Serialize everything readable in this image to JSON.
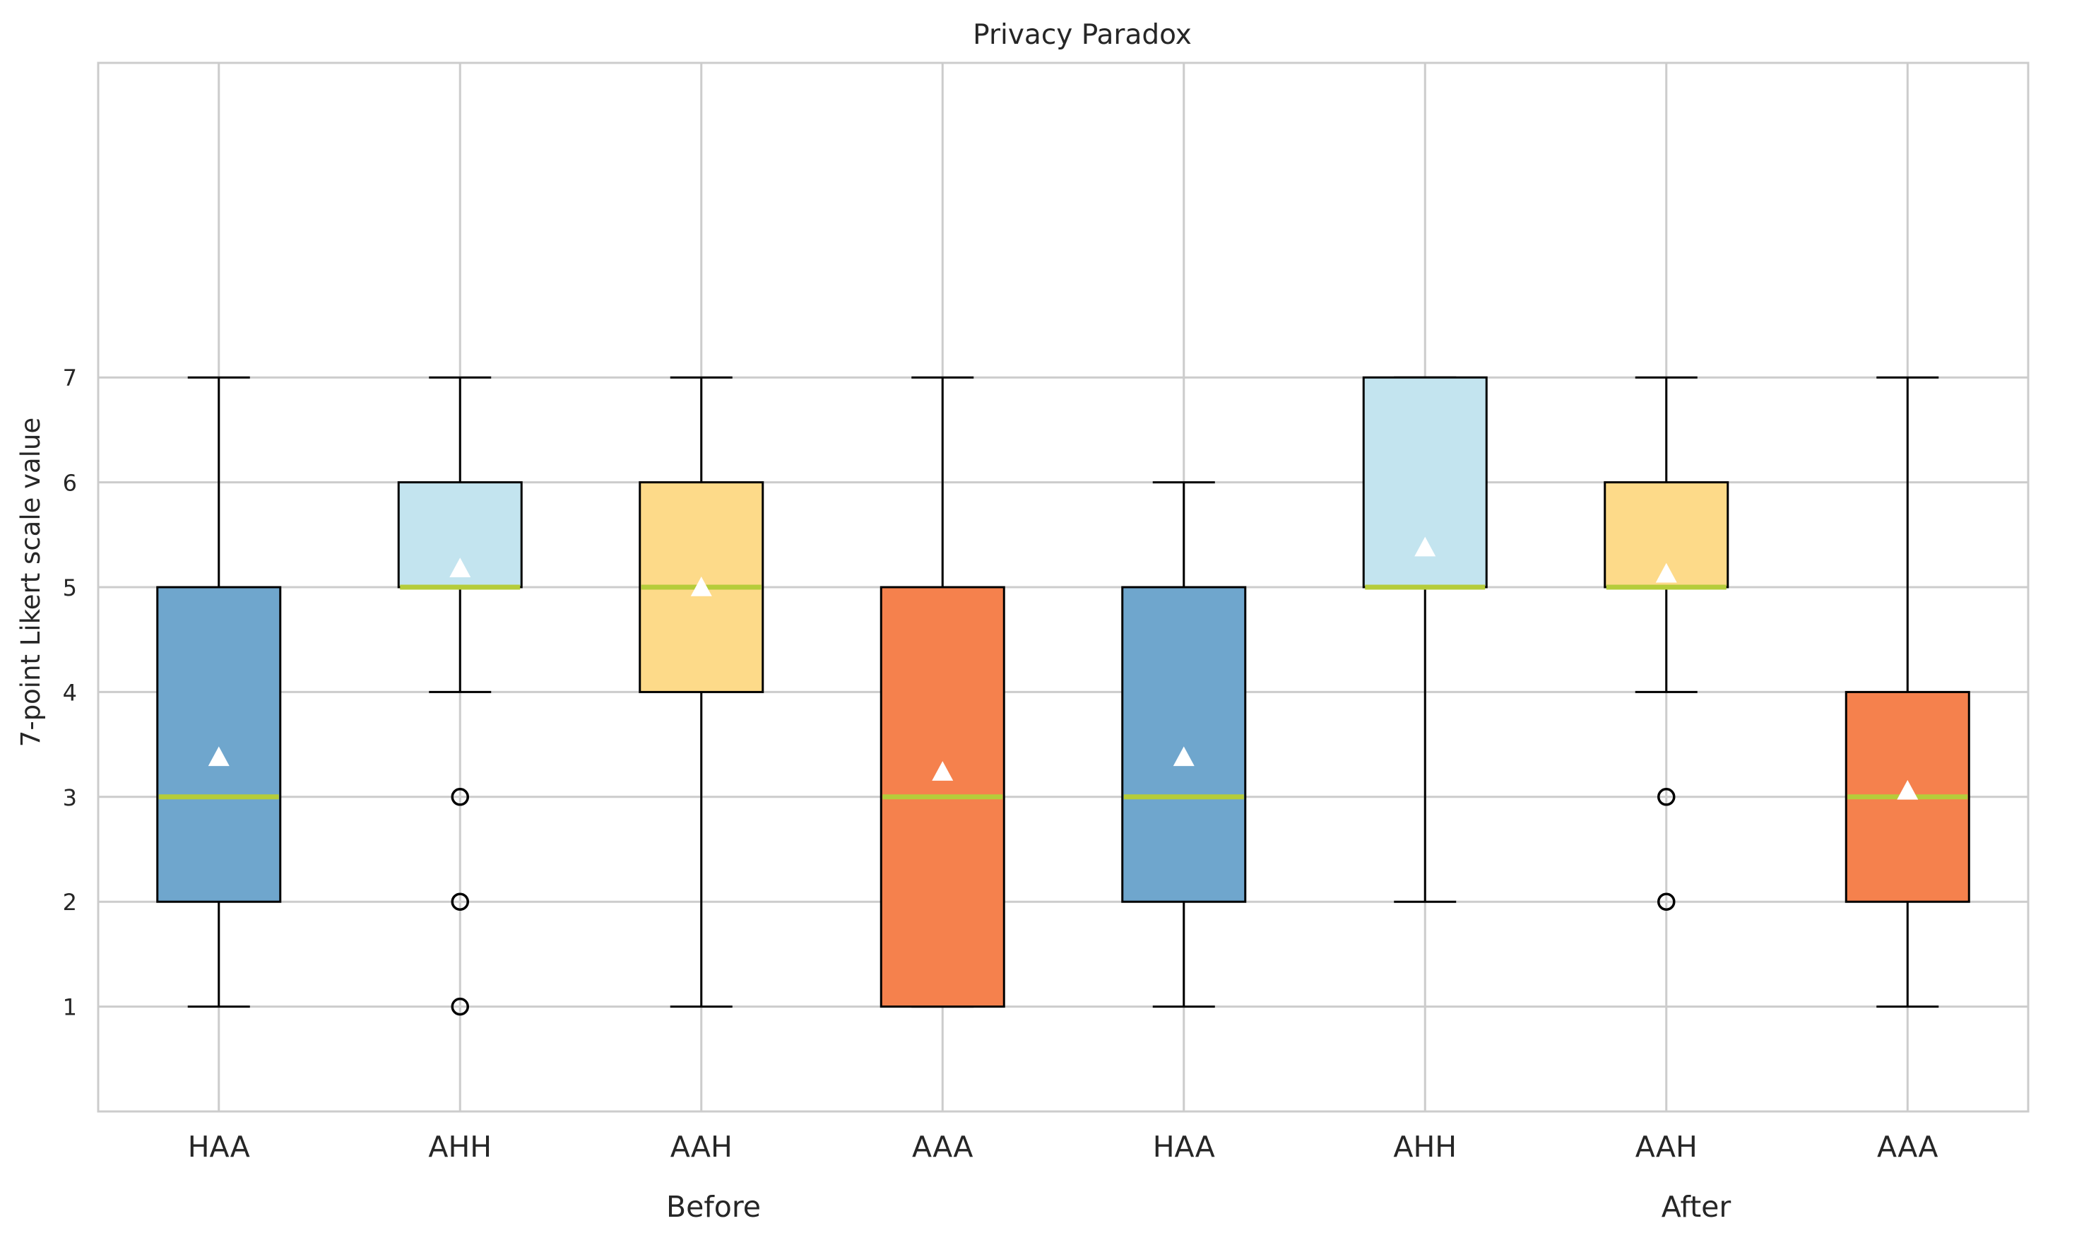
{
  "chart_data": {
    "type": "box",
    "title": "Privacy Paradox",
    "xlabel": "",
    "ylabel": "7-point Likert scale value",
    "ylim": [
      0,
      10
    ],
    "yticks": [
      1,
      2,
      3,
      4,
      5,
      6,
      7
    ],
    "grid": true,
    "groups": [
      "Before",
      "After"
    ],
    "colors": {
      "HAA": "#6fa6cd",
      "AHH": "#c3e4ef",
      "AAH": "#fdda89",
      "AAA": "#f5814d",
      "median": "#b5cc3a",
      "mean_marker": "#ffffff"
    },
    "boxes": [
      {
        "group": "Before",
        "label": "HAA",
        "whisker_low": 1,
        "q1": 2,
        "median": 3,
        "q3": 5,
        "whisker_high": 7,
        "mean": 3.38,
        "outliers": []
      },
      {
        "group": "Before",
        "label": "AHH",
        "whisker_low": 4,
        "q1": 5,
        "median": 5,
        "q3": 6,
        "whisker_high": 7,
        "mean": 5.18,
        "outliers": [
          3,
          2,
          1
        ]
      },
      {
        "group": "Before",
        "label": "AAH",
        "whisker_low": 1,
        "q1": 4,
        "median": 5,
        "q3": 6,
        "whisker_high": 7,
        "mean": 5.0,
        "outliers": []
      },
      {
        "group": "Before",
        "label": "AAA",
        "whisker_low": 1,
        "q1": 1,
        "median": 3,
        "q3": 5,
        "whisker_high": 7,
        "mean": 3.24,
        "outliers": []
      },
      {
        "group": "After",
        "label": "HAA",
        "whisker_low": 1,
        "q1": 2,
        "median": 3,
        "q3": 5,
        "whisker_high": 6,
        "mean": 3.38,
        "outliers": []
      },
      {
        "group": "After",
        "label": "AHH",
        "whisker_low": 2,
        "q1": 5,
        "median": 5,
        "q3": 7,
        "whisker_high": 7,
        "mean": 5.38,
        "outliers": []
      },
      {
        "group": "After",
        "label": "AAH",
        "whisker_low": 4,
        "q1": 5,
        "median": 5,
        "q3": 6,
        "whisker_high": 7,
        "mean": 5.13,
        "outliers": [
          3,
          2
        ]
      },
      {
        "group": "After",
        "label": "AAA",
        "whisker_low": 1,
        "q1": 2,
        "median": 3,
        "q3": 4,
        "whisker_high": 7,
        "mean": 3.06,
        "outliers": []
      }
    ]
  }
}
